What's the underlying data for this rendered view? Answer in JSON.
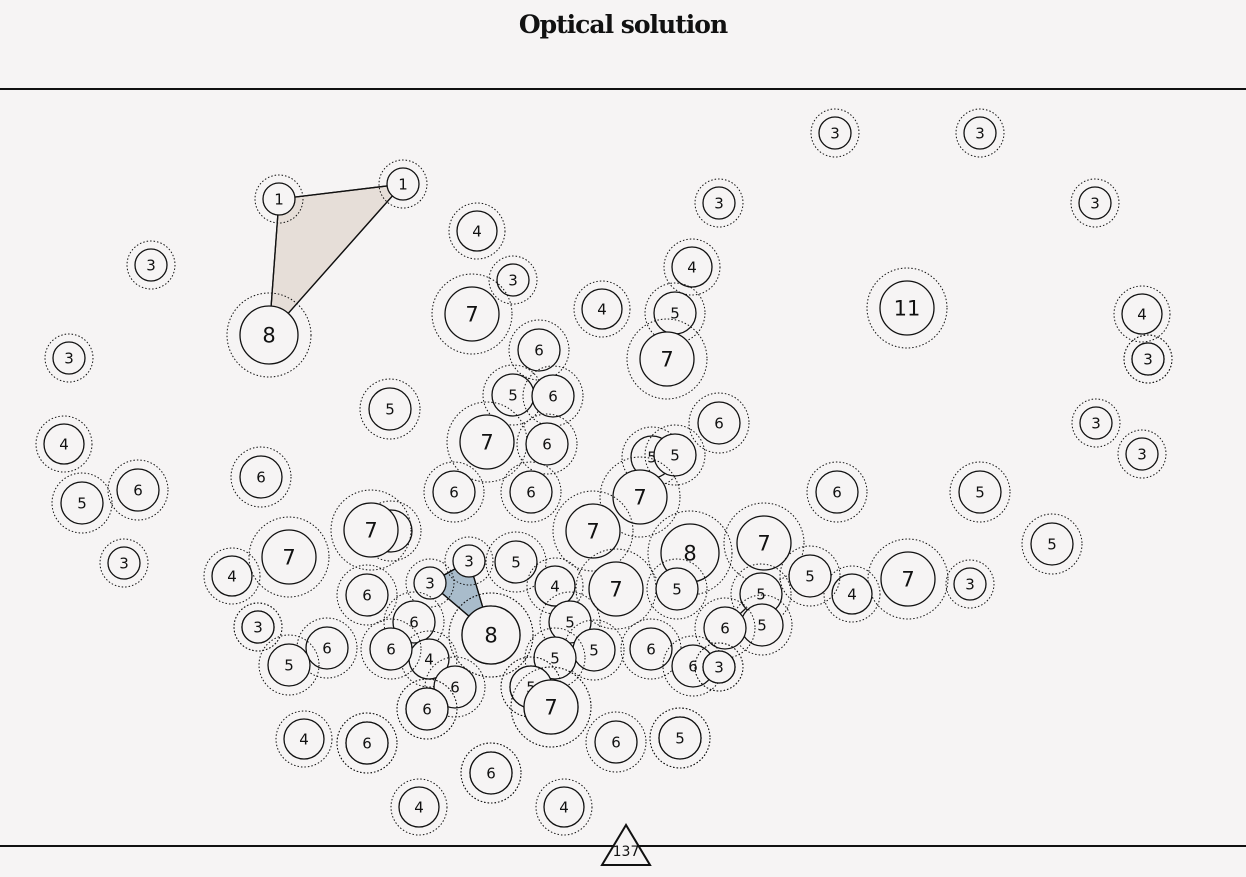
{
  "title": "Optical solution",
  "footer_badge": "137",
  "colors": {
    "background": "#f6f4f4",
    "node_fill": "#f6f4f4",
    "stroke": "#111111",
    "polygon_tan": "#e6ded8",
    "polygon_blue": "#a9bccb"
  },
  "nodes": [
    {
      "id": "n1",
      "label": "1"
    },
    {
      "id": "n2",
      "label": "1"
    },
    {
      "id": "n3",
      "label": "8"
    },
    {
      "id": "n4",
      "label": "3"
    },
    {
      "id": "n5",
      "label": "3"
    },
    {
      "id": "n6",
      "label": "3"
    },
    {
      "id": "n7",
      "label": "3"
    },
    {
      "id": "n8",
      "label": "3"
    },
    {
      "id": "n9",
      "label": "4"
    },
    {
      "id": "n10",
      "label": "3"
    },
    {
      "id": "n11",
      "label": "7"
    },
    {
      "id": "n12",
      "label": "4"
    },
    {
      "id": "n13",
      "label": "4"
    },
    {
      "id": "n14",
      "label": "5"
    },
    {
      "id": "n15",
      "label": "7"
    },
    {
      "id": "n16",
      "label": "6"
    },
    {
      "id": "n17",
      "label": "11"
    },
    {
      "id": "n18",
      "label": "3"
    },
    {
      "id": "n19",
      "label": "4"
    },
    {
      "id": "n20",
      "label": "3"
    },
    {
      "id": "n21",
      "label": "3"
    },
    {
      "id": "n22",
      "label": "5"
    },
    {
      "id": "n23",
      "label": "5"
    },
    {
      "id": "n24",
      "label": "6"
    },
    {
      "id": "n25",
      "label": "6"
    },
    {
      "id": "n26",
      "label": "4"
    },
    {
      "id": "n27",
      "label": "3"
    },
    {
      "id": "n28",
      "label": "7"
    },
    {
      "id": "n29",
      "label": "6"
    },
    {
      "id": "n30",
      "label": "6"
    },
    {
      "id": "n31",
      "label": "5"
    },
    {
      "id": "n32",
      "label": "5"
    },
    {
      "id": "n33",
      "label": "6"
    },
    {
      "id": "n34",
      "label": "3"
    },
    {
      "id": "n35",
      "label": "6"
    },
    {
      "id": "n36",
      "label": "6"
    },
    {
      "id": "n37",
      "label": "6"
    },
    {
      "id": "n38",
      "label": "7"
    },
    {
      "id": "n39",
      "label": "5"
    },
    {
      "id": "n40",
      "label": "5"
    },
    {
      "id": "n41",
      "label": "5"
    },
    {
      "id": "n42",
      "label": "5"
    },
    {
      "id": "n43",
      "label": "3"
    },
    {
      "id": "n44",
      "label": "7"
    },
    {
      "id": "n45",
      "label": "7"
    },
    {
      "id": "n46",
      "label": "7"
    },
    {
      "id": "n47",
      "label": "8"
    },
    {
      "id": "n48",
      "label": "7"
    },
    {
      "id": "n49",
      "label": "4"
    },
    {
      "id": "n50",
      "label": "3"
    },
    {
      "id": "n51",
      "label": "5"
    },
    {
      "id": "n52",
      "label": "4"
    },
    {
      "id": "n53",
      "label": "7"
    },
    {
      "id": "n54",
      "label": "5"
    },
    {
      "id": "n55",
      "label": "6"
    },
    {
      "id": "n56",
      "label": "3"
    },
    {
      "id": "n57",
      "label": "3"
    },
    {
      "id": "n58",
      "label": "7"
    },
    {
      "id": "n59",
      "label": "4"
    },
    {
      "id": "n60",
      "label": "5"
    },
    {
      "id": "n61",
      "label": "5"
    },
    {
      "id": "n62",
      "label": "5"
    },
    {
      "id": "n63",
      "label": "3"
    },
    {
      "id": "n64",
      "label": "8"
    },
    {
      "id": "n65",
      "label": "6"
    },
    {
      "id": "n66",
      "label": "6"
    },
    {
      "id": "n67",
      "label": "4"
    },
    {
      "id": "n68",
      "label": "6"
    },
    {
      "id": "n69",
      "label": "6"
    },
    {
      "id": "n70",
      "label": "5"
    },
    {
      "id": "n71",
      "label": "5"
    },
    {
      "id": "n72",
      "label": "5"
    },
    {
      "id": "n73",
      "label": "5"
    },
    {
      "id": "n74",
      "label": "6"
    },
    {
      "id": "n75",
      "label": "6"
    },
    {
      "id": "n76",
      "label": "3"
    },
    {
      "id": "n77",
      "label": "7"
    },
    {
      "id": "n78",
      "label": "5"
    },
    {
      "id": "n79",
      "label": "4"
    },
    {
      "id": "n80",
      "label": "6"
    },
    {
      "id": "n81",
      "label": "6"
    },
    {
      "id": "n82",
      "label": "5"
    },
    {
      "id": "n83",
      "label": "6"
    },
    {
      "id": "n84",
      "label": "4"
    },
    {
      "id": "n85",
      "label": "4"
    },
    {
      "id": "n86",
      "label": "6"
    },
    {
      "id": "n87",
      "label": "5"
    },
    {
      "id": "n88",
      "label": "5"
    },
    {
      "id": "n89",
      "label": "6"
    },
    {
      "id": "n90",
      "label": "5"
    },
    {
      "id": "n91",
      "label": "6"
    },
    {
      "id": "n92",
      "label": "7"
    },
    {
      "id": "n93",
      "label": "8"
    },
    {
      "id": "n94",
      "label": "3"
    },
    {
      "id": "n95",
      "label": "6"
    },
    {
      "id": "n96",
      "label": "3"
    }
  ]
}
